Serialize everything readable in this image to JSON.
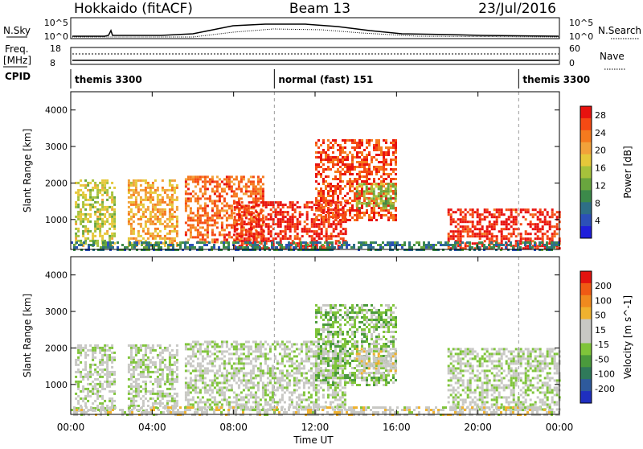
{
  "header": {
    "station": "Hokkaido (fitACF)",
    "beam": "Beam 13",
    "date": "23/Jul/2016"
  },
  "status": {
    "nsky_label": "N.Sky",
    "nsky_ticks": [
      "10^5",
      "10^0"
    ],
    "nsearch_label": "N.Search",
    "nsearch_ticks": [
      "10^5",
      "10^0"
    ],
    "freq_label_1": "Freq.",
    "freq_label_2": "[MHz]",
    "freq_ticks": [
      "18",
      "8"
    ],
    "nave_label": "Nave",
    "nave_ticks": [
      "60",
      "0"
    ],
    "cpid_label": "CPID",
    "cpid_segments": [
      {
        "label": "themis 3300",
        "start_hour": 0,
        "end_hour": 10
      },
      {
        "label": "normal (fast) 151",
        "start_hour": 10,
        "end_hour": 22
      },
      {
        "label": "themis 3300",
        "start_hour": 22,
        "end_hour": 24
      }
    ]
  },
  "colors": {
    "power_scale": [
      "#1f1fdb",
      "#2c50b8",
      "#2e6f86",
      "#3c8a4a",
      "#69a63e",
      "#a6c23b",
      "#e6c83a",
      "#f2a23a",
      "#f57a1e",
      "#f54a14",
      "#e8120f"
    ],
    "velocity_scale": [
      "#1f2fbf",
      "#2e5a9c",
      "#2f7a5a",
      "#4a9a3c",
      "#7fc43a",
      "#c8c8c4",
      "#c8c8c4",
      "#f0b22e",
      "#f08a1e",
      "#ef5a14",
      "#e3130f"
    ]
  },
  "chart_data": [
    {
      "type": "heatmap",
      "title": "",
      "xlabel": "",
      "ylabel": "Slant Range [km]",
      "colorbar_label": "Power [dB]",
      "colorbar_ticks": [
        "4",
        "8",
        "12",
        "16",
        "20",
        "24",
        "28"
      ],
      "colorbar_range": [
        0,
        30
      ],
      "xlim_hours": [
        0,
        24
      ],
      "ylim": [
        180,
        4500
      ],
      "y_ticks": [
        "1000",
        "2000",
        "3000",
        "4000"
      ],
      "x_ticks": [
        "00:00",
        "04:00",
        "08:00",
        "12:00",
        "16:00",
        "20:00",
        "00:00"
      ],
      "echo_regions": [
        {
          "t": [
            0.2,
            2.2
          ],
          "r": [
            250,
            2100
          ],
          "value": 16
        },
        {
          "t": [
            2.8,
            5.2
          ],
          "r": [
            250,
            2100
          ],
          "value": 20
        },
        {
          "t": [
            5.6,
            9.5
          ],
          "r": [
            400,
            2200
          ],
          "value": 24
        },
        {
          "t": [
            8.0,
            13.5
          ],
          "r": [
            200,
            1500
          ],
          "value": 28
        },
        {
          "t": [
            12.0,
            16.0
          ],
          "r": [
            1000,
            3200
          ],
          "value": 26
        },
        {
          "t": [
            14.0,
            16.0
          ],
          "r": [
            1300,
            2000
          ],
          "value": 14
        },
        {
          "t": [
            18.5,
            24.0
          ],
          "r": [
            200,
            1300
          ],
          "value": 28
        },
        {
          "t": [
            0.0,
            24.0
          ],
          "r": [
            180,
            400
          ],
          "value": 8
        }
      ]
    },
    {
      "type": "heatmap",
      "title": "",
      "xlabel": "Time UT",
      "ylabel": "Slant Range [km]",
      "colorbar_label": "Velocity [m s^-1]",
      "colorbar_ticks": [
        "200",
        "100",
        "50",
        "15",
        "-15",
        "-50",
        "-100",
        "-200"
      ],
      "colorbar_range": [
        -250,
        250
      ],
      "xlim_hours": [
        0,
        24
      ],
      "ylim": [
        180,
        4500
      ],
      "y_ticks": [
        "1000",
        "2000",
        "3000",
        "4000"
      ],
      "x_ticks": [
        "00:00",
        "04:00",
        "08:00",
        "12:00",
        "16:00",
        "20:00",
        "00:00"
      ],
      "echo_regions": [
        {
          "t": [
            0.2,
            2.2
          ],
          "r": [
            250,
            2100
          ],
          "value": 0
        },
        {
          "t": [
            2.8,
            5.2
          ],
          "r": [
            250,
            2100
          ],
          "value": 0
        },
        {
          "t": [
            5.6,
            13.5
          ],
          "r": [
            300,
            2200
          ],
          "value": 0
        },
        {
          "t": [
            12.0,
            16.0
          ],
          "r": [
            1000,
            3200
          ],
          "value": -40
        },
        {
          "t": [
            14.0,
            16.0
          ],
          "r": [
            1300,
            2000
          ],
          "value": 40
        },
        {
          "t": [
            18.5,
            24.0
          ],
          "r": [
            300,
            2000
          ],
          "value": 0
        },
        {
          "t": [
            0.0,
            24.0
          ],
          "r": [
            180,
            400
          ],
          "value": 30
        }
      ]
    }
  ]
}
